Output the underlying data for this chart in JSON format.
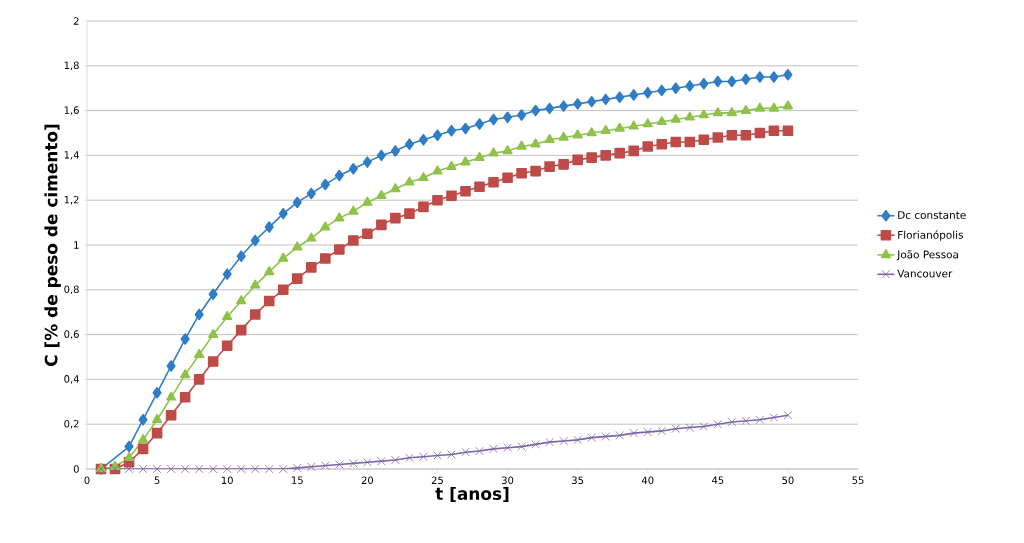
{
  "chart_data": {
    "type": "line",
    "xlabel": "t [anos]",
    "ylabel": "C [% de peso de cimento]",
    "x": [
      1,
      2,
      3,
      4,
      5,
      6,
      7,
      8,
      9,
      10,
      11,
      12,
      13,
      14,
      15,
      16,
      17,
      18,
      19,
      20,
      21,
      22,
      23,
      24,
      25,
      26,
      27,
      28,
      29,
      30,
      31,
      32,
      33,
      34,
      35,
      36,
      37,
      38,
      39,
      40,
      41,
      42,
      43,
      44,
      45,
      46,
      47,
      48,
      49,
      50
    ],
    "series": [
      {
        "name": "Dc constante",
        "color": "#2e7dc6",
        "marker": "diamond",
        "values": [
          0,
          null,
          0.1,
          0.22,
          0.34,
          0.46,
          0.58,
          0.69,
          0.78,
          0.87,
          0.95,
          1.02,
          1.08,
          1.14,
          1.19,
          1.23,
          1.27,
          1.31,
          1.34,
          1.37,
          1.4,
          1.42,
          1.45,
          1.47,
          1.49,
          1.51,
          1.52,
          1.54,
          1.56,
          1.57,
          1.58,
          1.6,
          1.61,
          1.62,
          1.63,
          1.64,
          1.65,
          1.66,
          1.67,
          1.68,
          1.69,
          1.7,
          1.71,
          1.72,
          1.73,
          1.73,
          1.74,
          1.75,
          1.75,
          1.76
        ]
      },
      {
        "name": "Florianópolis",
        "color": "#be4b48",
        "marker": "square",
        "values": [
          0,
          0,
          0.03,
          0.09,
          0.16,
          0.24,
          0.32,
          0.4,
          0.48,
          0.55,
          0.62,
          0.69,
          0.75,
          0.8,
          0.85,
          0.9,
          0.94,
          0.98,
          1.02,
          1.05,
          1.09,
          1.12,
          1.14,
          1.17,
          1.2,
          1.22,
          1.24,
          1.26,
          1.28,
          1.3,
          1.32,
          1.33,
          1.35,
          1.36,
          1.38,
          1.39,
          1.4,
          1.41,
          1.42,
          1.44,
          1.45,
          1.46,
          1.46,
          1.47,
          1.48,
          1.49,
          1.49,
          1.5,
          1.51,
          1.51
        ]
      },
      {
        "name": "João Pessoa",
        "color": "#8ec24a",
        "marker": "triangle",
        "values": [
          0,
          0.01,
          0.05,
          0.13,
          0.22,
          0.32,
          0.42,
          0.51,
          0.6,
          0.68,
          0.75,
          0.82,
          0.88,
          0.94,
          0.99,
          1.03,
          1.08,
          1.12,
          1.15,
          1.19,
          1.22,
          1.25,
          1.28,
          1.3,
          1.33,
          1.35,
          1.37,
          1.39,
          1.41,
          1.42,
          1.44,
          1.45,
          1.47,
          1.48,
          1.49,
          1.5,
          1.51,
          1.52,
          1.53,
          1.54,
          1.55,
          1.56,
          1.57,
          1.58,
          1.59,
          1.59,
          1.6,
          1.61,
          1.61,
          1.62
        ]
      },
      {
        "name": "Vancouver",
        "color": "#7f63a8",
        "marker": "cross",
        "values": [
          0,
          0,
          0,
          0,
          0,
          0,
          0,
          0,
          0,
          0,
          0,
          0,
          0,
          0,
          0.005,
          0.01,
          0.015,
          0.02,
          0.025,
          0.03,
          0.035,
          0.04,
          0.05,
          0.055,
          0.06,
          0.065,
          0.075,
          0.08,
          0.09,
          0.095,
          0.1,
          0.11,
          0.12,
          0.125,
          0.13,
          0.14,
          0.145,
          0.15,
          0.16,
          0.165,
          0.17,
          0.18,
          0.185,
          0.19,
          0.2,
          0.21,
          0.215,
          0.22,
          0.23,
          0.24
        ]
      }
    ],
    "xlim": [
      0,
      55
    ],
    "xticks": [
      0,
      5,
      10,
      15,
      20,
      25,
      30,
      35,
      40,
      45,
      50,
      55
    ],
    "ylim": [
      0,
      2
    ],
    "yticks": [
      0,
      {
        "value": 0.2,
        "label": "0,2"
      },
      {
        "value": 0.4,
        "label": "0,4"
      },
      {
        "value": 0.6,
        "label": "0,6"
      },
      {
        "value": 0.8,
        "label": "0,8"
      },
      1,
      {
        "value": 1.2,
        "label": "1,2"
      },
      {
        "value": 1.4,
        "label": "1,4"
      },
      {
        "value": 1.6,
        "label": "1,6"
      },
      {
        "value": 1.8,
        "label": "1,8"
      },
      2
    ],
    "grid": "y",
    "legend": "right",
    "line_style": "solid"
  }
}
